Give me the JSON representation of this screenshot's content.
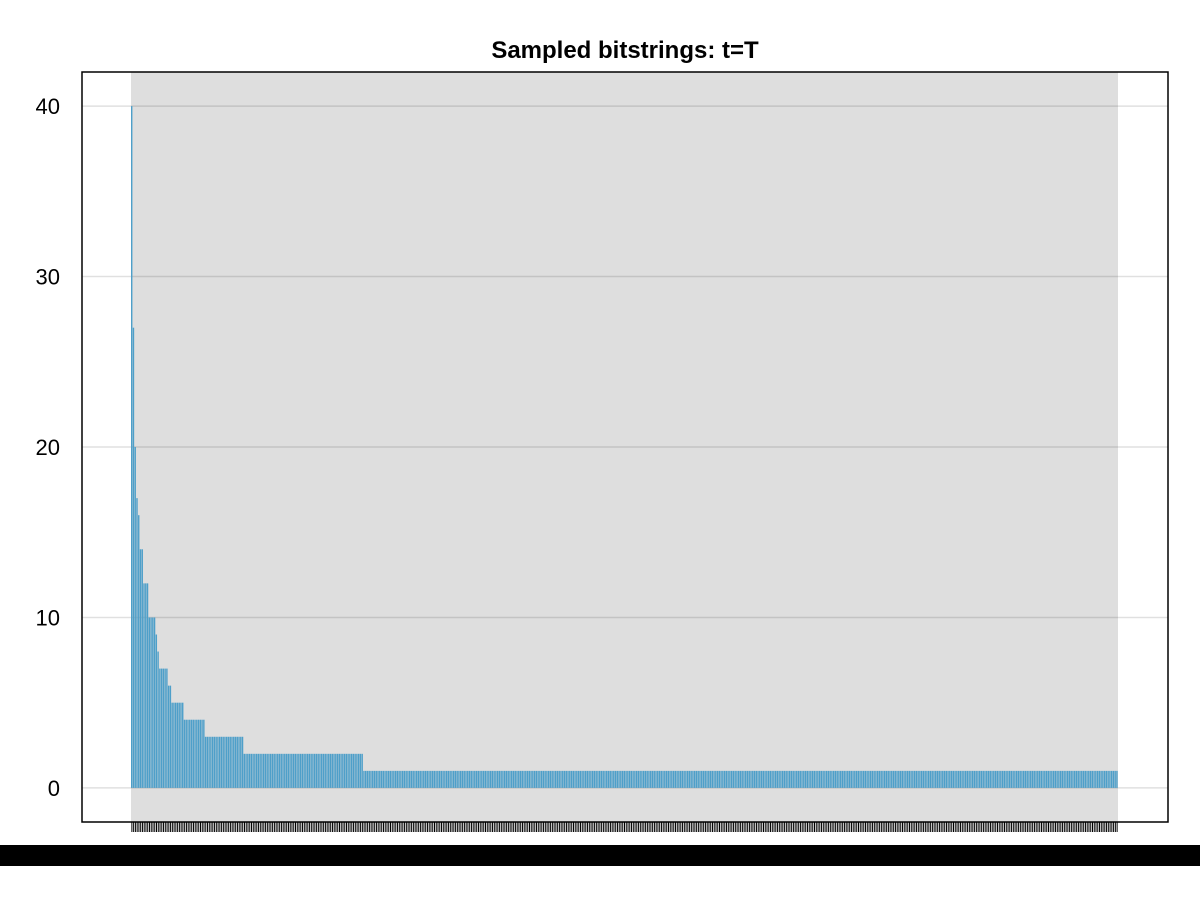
{
  "chart_data": {
    "type": "bar",
    "title": "Sampled bitstrings: t=T",
    "xlabel": "",
    "ylabel": "",
    "ylim": [
      -2,
      42
    ],
    "y_ticks": [
      0,
      10,
      20,
      30,
      40
    ],
    "grid": true,
    "legend": "none",
    "bar_color": "#4e9fc9",
    "values": [
      40,
      27,
      20,
      17,
      16,
      14,
      14,
      12,
      12,
      12,
      10,
      10,
      10,
      10,
      9,
      8,
      7,
      7,
      7,
      7,
      7,
      6,
      6,
      5,
      5,
      5,
      5,
      5,
      5,
      5,
      4,
      4,
      4,
      4,
      4,
      4,
      4,
      4,
      4,
      4,
      4,
      4,
      3,
      3,
      3,
      3,
      3,
      3,
      3,
      3,
      3,
      3,
      3,
      3,
      3,
      3,
      3,
      3,
      3,
      3,
      3,
      3,
      3,
      3,
      2,
      2,
      2,
      2,
      2,
      2,
      2,
      2,
      2,
      2,
      2,
      2,
      2,
      2,
      2,
      2,
      2,
      2,
      2,
      2,
      2,
      2,
      2,
      2,
      2,
      2,
      2,
      2,
      2,
      2,
      2,
      2,
      2,
      2,
      2,
      2,
      2,
      2,
      2,
      2,
      2,
      2,
      2,
      2,
      2,
      2,
      2,
      2,
      2,
      2,
      2,
      2,
      2,
      2,
      2,
      2,
      2,
      2,
      2,
      2,
      2,
      2,
      2,
      2,
      2,
      2,
      2,
      2,
      1,
      1,
      1,
      1,
      1,
      1,
      1,
      1,
      1,
      1,
      1,
      1,
      1,
      1,
      1,
      1,
      1,
      1,
      1,
      1,
      1,
      1,
      1,
      1,
      1,
      1,
      1,
      1,
      1,
      1,
      1,
      1,
      1,
      1,
      1,
      1,
      1,
      1,
      1,
      1,
      1,
      1,
      1,
      1,
      1,
      1,
      1,
      1,
      1,
      1,
      1,
      1,
      1,
      1,
      1,
      1,
      1,
      1,
      1,
      1,
      1,
      1,
      1,
      1,
      1,
      1,
      1,
      1,
      1,
      1,
      1,
      1,
      1,
      1,
      1,
      1,
      1,
      1,
      1,
      1,
      1,
      1,
      1,
      1,
      1,
      1,
      1,
      1,
      1,
      1,
      1,
      1,
      1,
      1,
      1,
      1,
      1,
      1,
      1,
      1,
      1,
      1,
      1,
      1,
      1,
      1,
      1,
      1,
      1,
      1,
      1,
      1,
      1,
      1,
      1,
      1,
      1,
      1,
      1,
      1,
      1,
      1,
      1,
      1,
      1,
      1,
      1,
      1,
      1,
      1,
      1,
      1,
      1,
      1,
      1,
      1,
      1,
      1,
      1,
      1,
      1,
      1,
      1,
      1,
      1,
      1,
      1,
      1,
      1,
      1,
      1,
      1,
      1,
      1,
      1,
      1,
      1,
      1,
      1,
      1,
      1,
      1,
      1,
      1,
      1,
      1,
      1,
      1,
      1,
      1,
      1,
      1,
      1,
      1,
      1,
      1,
      1,
      1,
      1,
      1,
      1,
      1,
      1,
      1,
      1,
      1,
      1,
      1,
      1,
      1,
      1,
      1,
      1,
      1,
      1,
      1,
      1,
      1,
      1,
      1,
      1,
      1,
      1,
      1,
      1,
      1,
      1,
      1,
      1,
      1,
      1,
      1,
      1,
      1,
      1,
      1,
      1,
      1,
      1,
      1,
      1,
      1,
      1,
      1,
      1,
      1,
      1,
      1,
      1,
      1,
      1,
      1,
      1,
      1,
      1,
      1,
      1,
      1,
      1,
      1,
      1,
      1,
      1,
      1,
      1,
      1,
      1,
      1,
      1,
      1,
      1,
      1,
      1,
      1,
      1,
      1,
      1,
      1,
      1,
      1,
      1,
      1,
      1,
      1,
      1,
      1,
      1,
      1,
      1,
      1,
      1,
      1,
      1,
      1,
      1,
      1,
      1,
      1,
      1,
      1,
      1,
      1,
      1,
      1,
      1,
      1,
      1,
      1,
      1,
      1,
      1,
      1,
      1,
      1,
      1,
      1,
      1,
      1,
      1,
      1,
      1,
      1,
      1,
      1,
      1,
      1,
      1,
      1,
      1,
      1,
      1,
      1,
      1,
      1,
      1,
      1,
      1,
      1,
      1,
      1,
      1,
      1,
      1,
      1,
      1,
      1,
      1,
      1,
      1,
      1,
      1,
      1,
      1,
      1,
      1,
      1,
      1,
      1,
      1,
      1,
      1,
      1,
      1,
      1,
      1,
      1,
      1,
      1,
      1,
      1,
      1,
      1,
      1,
      1,
      1,
      1,
      1,
      1,
      1,
      1,
      1,
      1,
      1,
      1,
      1,
      1,
      1,
      1,
      1,
      1,
      1,
      1,
      1,
      1,
      1,
      1,
      1,
      1,
      1,
      1,
      1,
      1,
      1,
      1,
      1,
      1,
      1,
      1,
      1,
      1,
      1,
      1,
      1,
      1,
      1,
      1,
      1,
      1,
      1,
      1,
      1,
      1,
      1,
      1,
      1,
      1,
      1,
      1,
      1,
      1,
      1,
      1,
      1,
      1,
      1,
      1,
      1,
      1,
      1,
      1,
      1,
      1,
      1,
      1,
      1,
      1,
      1,
      1,
      1
    ]
  }
}
